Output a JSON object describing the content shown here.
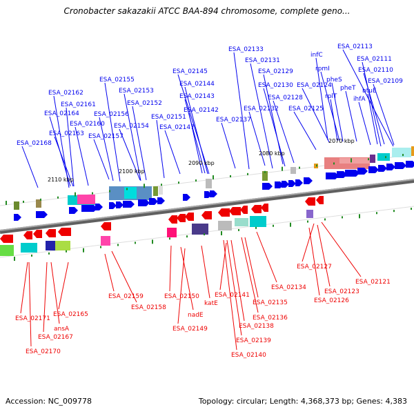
{
  "title": "Cronobacter sakazakii ATCC BAA-894 chromosome, complete geno...",
  "footer": {
    "accession": "Accession: NC_009778",
    "summary": "Topology: circular; Length: 4,368,373 bp; Genes: 4,383"
  },
  "colors": {
    "forward_gene": "#0000ee",
    "reverse_gene": "#ee0000",
    "backbone": "#808080",
    "tick": "#228b22"
  },
  "scale_labels": [
    "2110 kbp",
    "2100 kbp",
    "2090 kbp",
    "2080 kbp",
    "2070 kbp"
  ],
  "forward_genes": [
    "ESA_02113",
    "infC",
    "ESA_02133",
    "ESA_02111",
    "rpmI",
    "ESA_02131",
    "ESA_02110",
    "pheS",
    "ESA_02129",
    "ESA_02145",
    "ESA_02109",
    "ESA_02155",
    "pheT",
    "ESA_02130",
    "ESA_02124",
    "btuE",
    "ESA_02162",
    "ESA_02144",
    "ESA_02153",
    "rplT",
    "ihfA",
    "ESA_02128",
    "ESA_02143",
    "ESA_02161",
    "ESA_02152",
    "ESA_02132",
    "ESA_02125",
    "ESA_02164",
    "ESA_02142",
    "ESA_02156",
    "ESA_02151",
    "ESA_02137",
    "ESA_02160",
    "ESA_02154",
    "ESA_02147",
    "ESA_02163",
    "ESA_02157",
    "ESA_02168"
  ],
  "reverse_genes": [
    "ESA_02127",
    "ESA_02121",
    "ESA_02134",
    "ESA_02123",
    "ESA_02159",
    "ESA_02150",
    "ESA_02141",
    "ESA_02126",
    "katE",
    "ESA_02135",
    "ESA_02158",
    "ESA_02165",
    "ESA_02171",
    "nadE",
    "ESA_02136",
    "ansA",
    "ESA_02149",
    "ESA_02138",
    "ESA_02167",
    "ESA_02139",
    "ESA_02170",
    "ESA_02140"
  ]
}
